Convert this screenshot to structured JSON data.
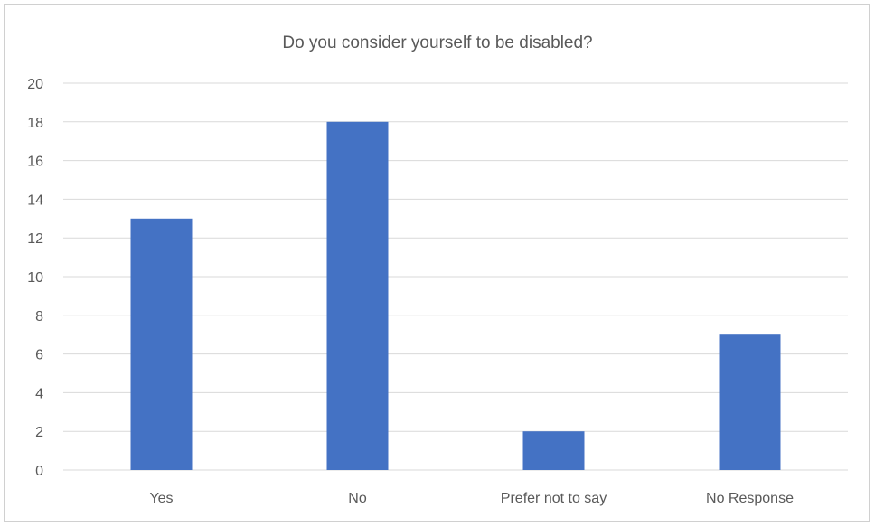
{
  "chart_data": {
    "type": "bar",
    "title": "Do you consider yourself to be disabled?",
    "categories": [
      "Yes",
      "No",
      "Prefer not to say",
      "No Response"
    ],
    "values": [
      13,
      18,
      2,
      7
    ],
    "ylim": [
      0,
      20
    ],
    "yticks": [
      0,
      2,
      4,
      6,
      8,
      10,
      12,
      14,
      16,
      18,
      20
    ],
    "grid": true,
    "legend": "none",
    "bar_color": "#4472C4",
    "grid_color": "#d9d9d9"
  }
}
